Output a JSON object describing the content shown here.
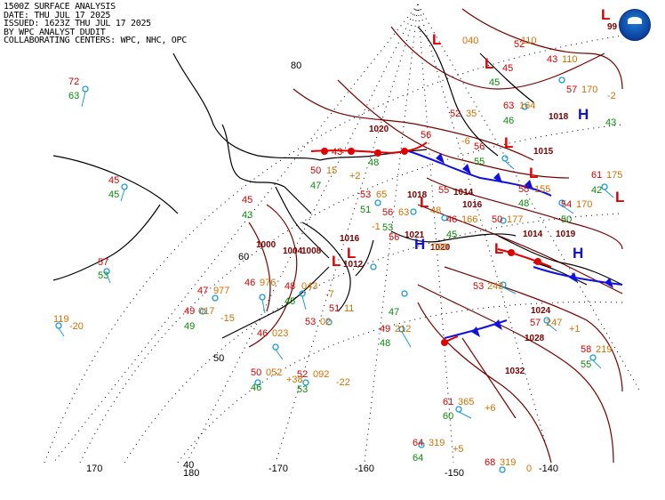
{
  "header": {
    "line1": "1500Z SURFACE ANALYSIS",
    "line2": "DATE: THU JUL 17 2025",
    "line3": "ISSUED: 1623Z THU JUL 17 2025",
    "line4": "BY WPC ANALYST DUDIT",
    "line5": "COLLABORATING CENTERS: WPC, NHC, OPC"
  },
  "logo_icon": "noaa-logo-icon",
  "colors": {
    "isobar": "#7a0000",
    "low": "#e00000",
    "high": "#1010e0",
    "cold_front": "#1010e0",
    "warm_front": "#e00000",
    "temperature": "#d40000",
    "dewpoint": "#0a8a0a",
    "pressure": "#d07000",
    "land": "#000000",
    "station": "#1b9bd1"
  },
  "graticule": {
    "lat_labels": [
      "80",
      "60",
      "50",
      "40"
    ],
    "lon_labels": [
      "170",
      "180",
      "-170",
      "-160",
      "-150",
      "-140"
    ]
  },
  "isobar_labels": [
    "1020",
    "1018",
    "1015",
    "1014",
    "1016",
    "1018",
    "1014",
    "1019",
    "1021",
    "1020",
    "1016",
    "1012",
    "1008",
    "1004",
    "1000",
    "1024",
    "1028",
    "1032"
  ],
  "pressure_centers": [
    {
      "type": "L",
      "value": "99"
    },
    {
      "type": "L",
      "value": ""
    },
    {
      "type": "L",
      "value": ""
    },
    {
      "type": "L",
      "value": "1015"
    },
    {
      "type": "L",
      "value": ""
    },
    {
      "type": "H",
      "value": "1018"
    },
    {
      "type": "L",
      "value": "1018"
    },
    {
      "type": "H",
      "value": "1021"
    },
    {
      "type": "L",
      "value": ""
    },
    {
      "type": "L",
      "value": "1012"
    },
    {
      "type": "H",
      "value": "1019"
    },
    {
      "type": "L",
      "value": ""
    },
    {
      "type": "L",
      "value": "1016"
    }
  ],
  "station_obs": [
    {
      "t": "72",
      "td": "63",
      "p": ""
    },
    {
      "t": "45",
      "td": "45",
      "p": ""
    },
    {
      "t": "57",
      "td": "53",
      "p": ""
    },
    {
      "t": "119",
      "td": "",
      "p": "-20"
    },
    {
      "t": "47",
      "td": "",
      "p": "977"
    },
    {
      "t": "49",
      "td": "49",
      "p": "017"
    },
    {
      "t": "46",
      "td": "",
      "p": "976"
    },
    {
      "t": "48",
      "td": "45",
      "p": "043"
    },
    {
      "t": "53",
      "td": "",
      "p": "02"
    },
    {
      "t": "46",
      "td": "",
      "p": "023"
    },
    {
      "t": "50",
      "td": "46",
      "p": "052"
    },
    {
      "t": "52",
      "td": "53",
      "p": "092"
    },
    {
      "t": "49",
      "td": "48",
      "p": "212"
    },
    {
      "t": "61",
      "td": "60",
      "p": "365"
    },
    {
      "t": "64",
      "td": "64",
      "p": "319"
    },
    {
      "t": "68",
      "td": "",
      "p": "319"
    },
    {
      "t": "58",
      "td": "55",
      "p": "219"
    },
    {
      "t": "57",
      "td": "",
      "p": "247"
    },
    {
      "t": "53",
      "td": "",
      "p": "243"
    },
    {
      "t": "50",
      "td": "",
      "p": "177"
    },
    {
      "t": "54",
      "td": "50",
      "p": "170"
    },
    {
      "t": "61",
      "td": "42",
      "p": "175"
    },
    {
      "t": "57",
      "td": "43",
      "p": "170"
    },
    {
      "t": "63",
      "td": "46",
      "p": "164"
    },
    {
      "t": "55",
      "td": "48",
      "p": "155"
    },
    {
      "t": "56",
      "td": "55",
      "p": ""
    },
    {
      "t": "52",
      "td": "",
      "p": "35"
    },
    {
      "t": "50",
      "td": "47",
      "p": "15"
    },
    {
      "t": "45",
      "td": "43",
      "p": ""
    },
    {
      "t": "53",
      "td": "51",
      "p": "65"
    },
    {
      "t": "55",
      "td": "",
      "p": "48"
    },
    {
      "t": "56",
      "td": "53",
      "p": "63"
    },
    {
      "t": "46",
      "td": "45",
      "p": "166"
    },
    {
      "t": "56",
      "td": "",
      "p": "020"
    },
    {
      "t": "51",
      "td": "47",
      "p": "11"
    },
    {
      "t": "43",
      "td": "48",
      "p": ""
    },
    {
      "t": "56",
      "td": "",
      "p": ""
    },
    {
      "t": "52",
      "td": "",
      "p": "040"
    },
    {
      "t": "45",
      "td": "",
      "p": "110"
    },
    {
      "t": "43",
      "td": "45",
      "p": "110"
    }
  ],
  "pressure_tendency": [
    "-15",
    "-7",
    "+38",
    "-22",
    "+6",
    "+5",
    "0",
    "+1",
    "-1",
    "-6",
    "+2",
    "-2"
  ]
}
